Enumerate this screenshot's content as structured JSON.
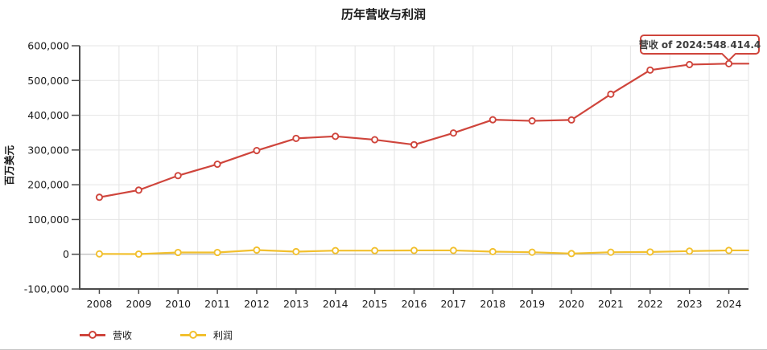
{
  "chart": {
    "tooltip_text": "营收 of 2024:548,414.4",
    "colors": {
      "revenue": "#cf453c",
      "profit": "#f2c02e",
      "grid": "#e4e4e4",
      "zero_line": "#a9a9a9",
      "axis": "#4a4a4a",
      "tick_label": "#1c1c1c",
      "tooltip_border": "#cf453c",
      "background": "#ffffff"
    }
  },
  "chart_data": {
    "type": "line",
    "title": "历年营收与利润",
    "xlabel": "",
    "ylabel": "百万美元",
    "x": [
      2008,
      2009,
      2010,
      2011,
      2012,
      2013,
      2014,
      2015,
      2016,
      2017,
      2018,
      2019,
      2020,
      2021,
      2022,
      2023,
      2024
    ],
    "series": [
      {
        "name": "营收",
        "color": "#cf453c",
        "values": [
          164000,
          184500,
          226300,
          259100,
          298400,
          333400,
          339400,
          329600,
          315200,
          348900,
          387100,
          383900,
          386600,
          460600,
          530000,
          545900,
          548414.4
        ]
      },
      {
        "name": "利润",
        "color": "#f2c02e",
        "values": [
          1000,
          500,
          5100,
          5100,
          12000,
          7500,
          10500,
          10500,
          11000,
          11000,
          7500,
          5800,
          2000,
          5800,
          6500,
          9000,
          11000
        ]
      }
    ],
    "ylim": [
      -100000,
      600000
    ],
    "ytick_step": 100000,
    "yticks": [
      "600,000",
      "500,000",
      "400,000",
      "300,000",
      "200,000",
      "100,000",
      "0",
      "-100,000"
    ],
    "grid": true,
    "legend_position": "bottom",
    "markers": "hollow-circle",
    "tooltip": {
      "series": "营收",
      "x": 2024,
      "value": 548414.4,
      "text": "营收 of 2024:548,414.4"
    }
  }
}
